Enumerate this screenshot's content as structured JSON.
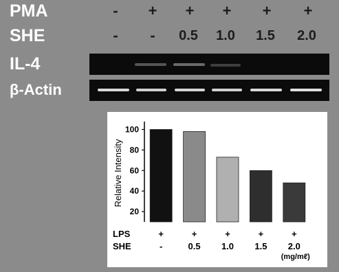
{
  "gel": {
    "pma_label": "PMA",
    "she_label": "SHE",
    "il4_label": "IL-4",
    "actin_label": "β-Actin",
    "pma_values": [
      "-",
      "+",
      "+",
      "+",
      "+",
      "+"
    ],
    "she_values": [
      "-",
      "-",
      "0.5",
      "1.0",
      "1.5",
      "2.0"
    ]
  },
  "chart_data": {
    "type": "bar",
    "ylabel": "Relative Intensity",
    "ylim": [
      10,
      105
    ],
    "yticks": [
      "20",
      "40",
      "60",
      "80",
      "100"
    ],
    "categories": [
      "-",
      "0.5",
      "1.0",
      "1.5",
      "2.0"
    ],
    "values": [
      100,
      98,
      73,
      60,
      48
    ],
    "row_labels": {
      "lps": "LPS",
      "she": "SHE"
    },
    "lps_values": [
      "+",
      "+",
      "+",
      "+",
      "+"
    ],
    "unit": "(mg/mℓ)",
    "bar_colors": [
      "#111111",
      "#8a8a8a",
      "#b0b0b0",
      "#2e2e2e",
      "#3a3a3a"
    ]
  }
}
